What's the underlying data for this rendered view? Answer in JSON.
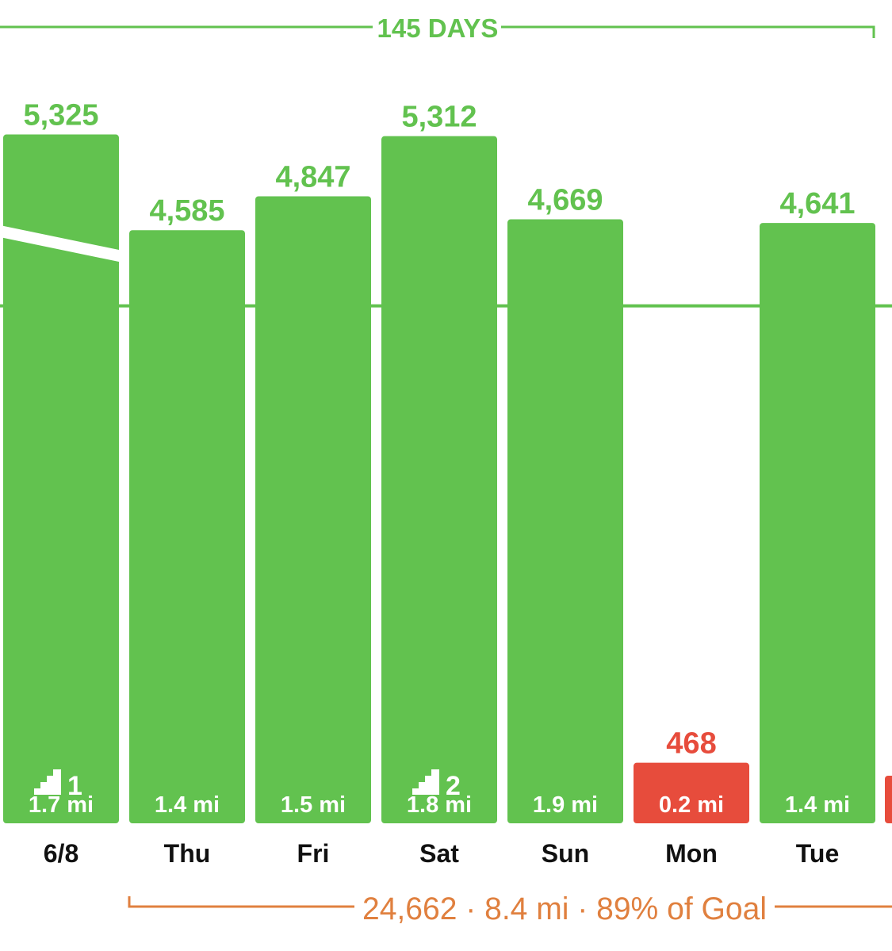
{
  "colors": {
    "goal_met": "#62c24f",
    "goal_missed": "#e74c3c",
    "summary": "#e0803f",
    "day_text": "#111111",
    "bar_text": "#ffffff"
  },
  "streak": {
    "label": "145 DAYS"
  },
  "summary": {
    "label": "24,662 · 8.4 mi · 89% of Goal"
  },
  "chart_data": {
    "type": "bar",
    "categories": [
      "6/8",
      "Thu",
      "Fri",
      "Sat",
      "Sun",
      "Mon",
      "Tue"
    ],
    "values": [
      5325,
      4585,
      4847,
      5312,
      4669,
      468,
      4641
    ],
    "value_labels": [
      "5,325",
      "4,585",
      "4,847",
      "5,312",
      "4,669",
      "468",
      "4,641"
    ],
    "distance_labels": [
      "1.7 mi",
      "1.4 mi",
      "1.5 mi",
      "1.8 mi",
      "1.9 mi",
      "0.2 mi",
      "1.4 mi"
    ],
    "floors": [
      "1",
      "",
      "",
      "2",
      "",
      "",
      ""
    ],
    "goal_met": [
      true,
      true,
      true,
      true,
      true,
      false,
      true
    ],
    "goal_line": 4000,
    "ylim": [
      0,
      5690
    ],
    "grid": false,
    "legend": "none"
  }
}
